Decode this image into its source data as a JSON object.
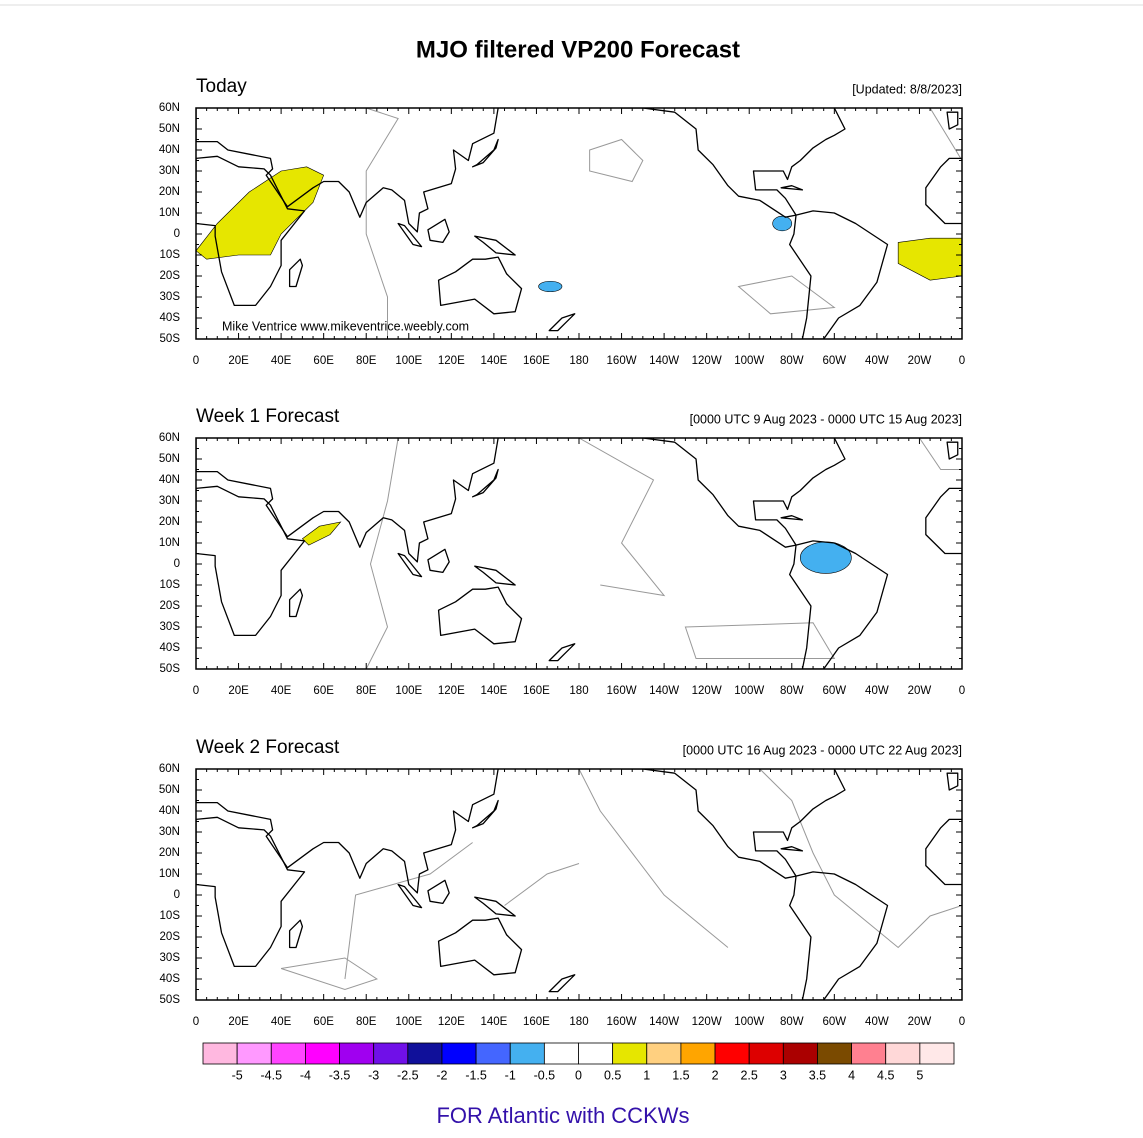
{
  "title": "MJO filtered VP200 Forecast",
  "panels": [
    {
      "label": "Today",
      "date": "[Updated: 8/8/2023]"
    },
    {
      "label": "Week 1 Forecast",
      "date": "[0000 UTC 9 Aug 2023 - 0000 UTC 15 Aug 2023]"
    },
    {
      "label": "Week 2 Forecast",
      "date": "[0000 UTC 16 Aug 2023 - 0000 UTC 22 Aug 2023]"
    }
  ],
  "credit": "Mike Ventrice www.mikeventrice.weebly.com",
  "lat_labels": [
    "60N",
    "50N",
    "40N",
    "30N",
    "20N",
    "10N",
    "0",
    "10S",
    "20S",
    "30S",
    "40S",
    "50S"
  ],
  "lon_labels": [
    "0",
    "20E",
    "40E",
    "60E",
    "80E",
    "100E",
    "120E",
    "140E",
    "160E",
    "180",
    "160W",
    "140W",
    "120W",
    "100W",
    "80W",
    "60W",
    "40W",
    "20W",
    "0"
  ],
  "colorbar": {
    "colors": [
      "#ffb8e0",
      "#ff99ff",
      "#ff44ff",
      "#ff00ff",
      "#a000f0",
      "#7010e8",
      "#10109a",
      "#0000ff",
      "#4466ff",
      "#44b0f0",
      "#ffffff",
      "#ffffff",
      "#e6e600",
      "#ffd080",
      "#ffa500",
      "#ff0000",
      "#dd0000",
      "#aa0000",
      "#7a4a00",
      "#ff8090",
      "#ffd8d8",
      "#ffe8e8"
    ],
    "labels": [
      "-5",
      "-4.5",
      "-4",
      "-3.5",
      "-3",
      "-2.5",
      "-2",
      "-1.5",
      "-1",
      "-0.5",
      "0",
      "0.5",
      "1",
      "1.5",
      "2",
      "2.5",
      "3",
      "3.5",
      "4",
      "4.5",
      "5"
    ]
  },
  "footer_link": "FOR Atlantic with CCKWs"
}
